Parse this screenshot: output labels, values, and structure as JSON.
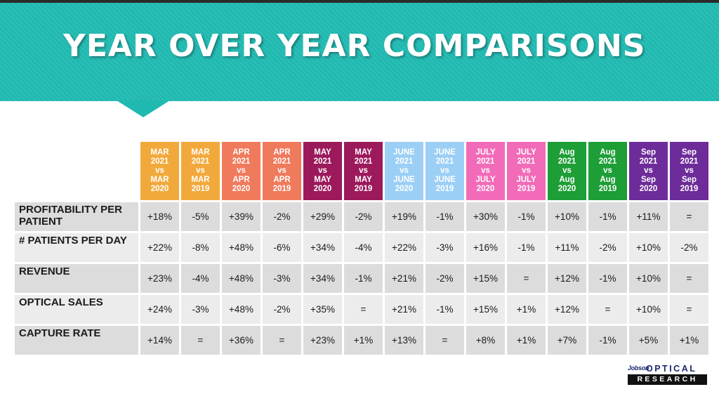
{
  "title": "YEAR OVER YEAR COMPARISONS",
  "columns": [
    {
      "lines": [
        "MAR",
        "2021",
        "vs",
        "MAR",
        "2020"
      ],
      "color": "#f2a93b"
    },
    {
      "lines": [
        "MAR",
        "2021",
        "vs",
        "MAR",
        "2019"
      ],
      "color": "#f2a93b"
    },
    {
      "lines": [
        "APR",
        "2021",
        "vs",
        "APR",
        "2020"
      ],
      "color": "#f07a5c"
    },
    {
      "lines": [
        "APR",
        "2021",
        "vs",
        "APR",
        "2019"
      ],
      "color": "#f07a5c"
    },
    {
      "lines": [
        "MAY",
        "2021",
        "vs",
        "MAY",
        "2020"
      ],
      "color": "#9c1a5c"
    },
    {
      "lines": [
        "MAY",
        "2021",
        "vs",
        "MAY",
        "2019"
      ],
      "color": "#9c1a5c"
    },
    {
      "lines": [
        "JUNE",
        "2021",
        "vs",
        "JUNE",
        "2020"
      ],
      "color": "#9ccff5"
    },
    {
      "lines": [
        "JUNE",
        "2021",
        "vs",
        "JUNE",
        "2019"
      ],
      "color": "#9ccff5"
    },
    {
      "lines": [
        "JULY",
        "2021",
        "vs",
        "JULY",
        "2020"
      ],
      "color": "#f26bb8"
    },
    {
      "lines": [
        "JULY",
        "2021",
        "vs",
        "JULY",
        "2019"
      ],
      "color": "#f26bb8"
    },
    {
      "lines": [
        "Aug",
        "2021",
        "vs",
        "Aug",
        "2020"
      ],
      "color": "#1d9e36"
    },
    {
      "lines": [
        "Aug",
        "2021",
        "vs",
        "Aug",
        "2019"
      ],
      "color": "#1d9e36"
    },
    {
      "lines": [
        "Sep",
        "2021",
        "vs",
        "Sep",
        "2020"
      ],
      "color": "#6d2c99"
    },
    {
      "lines": [
        "Sep",
        "2021",
        "vs",
        "Sep",
        "2019"
      ],
      "color": "#6d2c99"
    }
  ],
  "rows": [
    {
      "label": "PROFITABILITY PER PATIENT",
      "values": [
        "+18%",
        "-5%",
        "+39%",
        "-2%",
        "+29%",
        "-2%",
        "+19%",
        "-1%",
        "+30%",
        "-1%",
        "+10%",
        "-1%",
        "+11%",
        "="
      ]
    },
    {
      "label": "# PATIENTS PER DAY",
      "values": [
        "+22%",
        "-8%",
        "+48%",
        "-6%",
        "+34%",
        "-4%",
        "+22%",
        "-3%",
        "+16%",
        "-1%",
        "+11%",
        "-2%",
        "+10%",
        "-2%"
      ]
    },
    {
      "label": "REVENUE",
      "values": [
        "+23%",
        "-4%",
        "+48%",
        "-3%",
        "+34%",
        "-1%",
        "+21%",
        "-2%",
        "+15%",
        "=",
        "+12%",
        "-1%",
        "+10%",
        "="
      ]
    },
    {
      "label": "OPTICAL SALES",
      "values": [
        "+24%",
        "-3%",
        "+48%",
        "-2%",
        "+35%",
        "=",
        "+21%",
        "-1%",
        "+15%",
        "+1%",
        "+12%",
        "=",
        "+10%",
        "="
      ]
    },
    {
      "label": "CAPTURE RATE",
      "values": [
        "+14%",
        "=",
        "+36%",
        "=",
        "+23%",
        "+1%",
        "+13%",
        "=",
        "+8%",
        "+1%",
        "+7%",
        "-1%",
        "+5%",
        "+1%"
      ]
    }
  ],
  "logo": {
    "small": "Jobson",
    "top": "OPTICAL",
    "bottom": "RESEARCH"
  },
  "colors": {
    "banner": "#1fb9b0",
    "title_text": "#ffffff",
    "row_dark": "#dcdcdc",
    "row_light": "#ececec"
  }
}
